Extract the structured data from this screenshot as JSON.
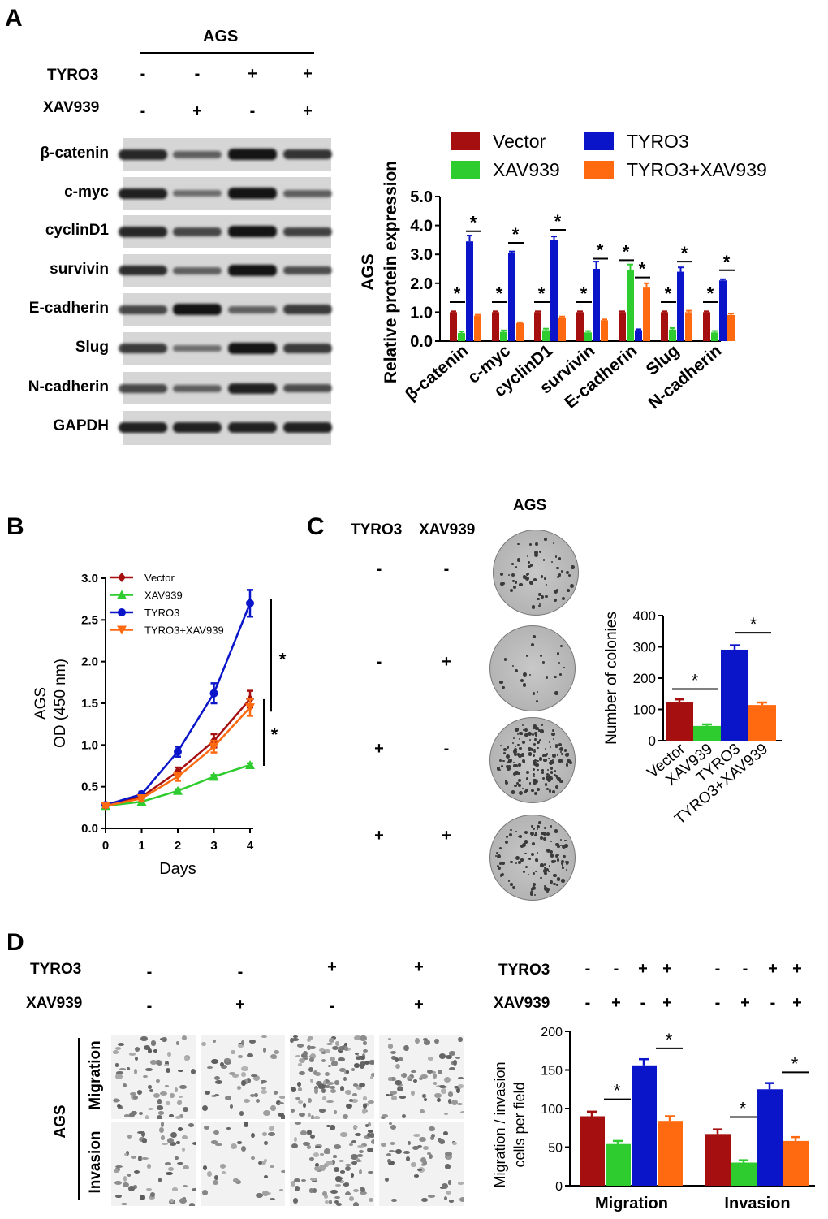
{
  "colors": {
    "vector": "#a50f0f",
    "xav939": "#2ecc2e",
    "tyro3": "#0a14c8",
    "combo": "#ff6a10"
  },
  "panel_a": {
    "letter": "A",
    "cell_line": "AGS",
    "row_labels": [
      "TYRO3",
      "XAV939"
    ],
    "tyro3_signs": [
      "-",
      "-",
      "+",
      "+"
    ],
    "xav939_signs": [
      "-",
      "+",
      "-",
      "+"
    ],
    "proteins": [
      "β-catenin",
      "c-myc",
      "cyclinD1",
      "survivin",
      "E-cadherin",
      "Slug",
      "N-cadherin",
      "GAPDH"
    ]
  },
  "panel_b": {
    "letter": "B"
  },
  "panel_c": {
    "letter": "C",
    "cell_line": "AGS",
    "col_labels": [
      "TYRO3",
      "XAV939"
    ],
    "tyro3_signs": [
      "-",
      "-",
      "+",
      "+"
    ],
    "xav939_signs": [
      "-",
      "+",
      "-",
      "+"
    ]
  },
  "panel_d": {
    "letter": "D",
    "row_labels": [
      "TYRO3",
      "XAV939"
    ],
    "tyro3_signs": [
      "-",
      "-",
      "+",
      "+"
    ],
    "xav939_signs": [
      "-",
      "+",
      "-",
      "+"
    ],
    "cell_line": "AGS",
    "assay_labels": [
      "Migration",
      "Invasion"
    ],
    "chart_signs_tyro3": [
      "-",
      "-",
      "+",
      "+",
      "-",
      "-",
      "+",
      "+"
    ],
    "chart_signs_xav939": [
      "-",
      "+",
      "-",
      "+",
      "-",
      "+",
      "-",
      "+"
    ]
  },
  "chart_data": [
    {
      "id": "western-quant",
      "type": "bar",
      "ylabel": "Relative protein expression",
      "ylabel2": "AGS",
      "categories": [
        "β-catenin",
        "c-myc",
        "cyclinD1",
        "survivin",
        "E-cadherin",
        "Slug",
        "N-cadherin"
      ],
      "series": [
        {
          "name": "Vector",
          "values": [
            1.0,
            1.0,
            1.0,
            1.0,
            1.0,
            1.0,
            1.0
          ],
          "errors": [
            0.03,
            0.03,
            0.03,
            0.03,
            0.03,
            0.03,
            0.03
          ]
        },
        {
          "name": "XAV939",
          "values": [
            0.28,
            0.32,
            0.38,
            0.3,
            2.45,
            0.4,
            0.3
          ],
          "errors": [
            0.05,
            0.05,
            0.05,
            0.05,
            0.2,
            0.05,
            0.05
          ]
        },
        {
          "name": "TYRO3",
          "values": [
            3.45,
            3.05,
            3.5,
            2.5,
            0.38,
            2.4,
            2.1
          ],
          "errors": [
            0.2,
            0.05,
            0.12,
            0.25,
            0.03,
            0.15,
            0.04
          ]
        },
        {
          "name": "TYRO3+XAV939",
          "values": [
            0.88,
            0.62,
            0.82,
            0.72,
            1.85,
            1.0,
            0.9
          ],
          "errors": [
            0.03,
            0.03,
            0.03,
            0.03,
            0.15,
            0.05,
            0.05
          ]
        }
      ],
      "ylim": [
        0,
        5
      ],
      "yticks": [
        "0.0",
        "1.0",
        "2.0",
        "3.0",
        "4.0",
        "5.0"
      ],
      "legend": "top",
      "annotation": "*"
    },
    {
      "id": "growth-curve",
      "type": "line",
      "xlabel": "Days",
      "ylabel": "OD (450 nm)",
      "ylabel2": "AGS",
      "x": [
        0,
        1,
        2,
        3,
        4
      ],
      "xticks": [
        "0",
        "1",
        "2",
        "3",
        "4"
      ],
      "series": [
        {
          "name": "Vector",
          "values": [
            0.28,
            0.38,
            0.68,
            1.05,
            1.55
          ],
          "errors": [
            0.02,
            0.03,
            0.05,
            0.08,
            0.1
          ]
        },
        {
          "name": "XAV939",
          "values": [
            0.27,
            0.32,
            0.45,
            0.62,
            0.76
          ],
          "errors": [
            0.02,
            0.02,
            0.02,
            0.02,
            0.02
          ]
        },
        {
          "name": "TYRO3",
          "values": [
            0.28,
            0.41,
            0.92,
            1.62,
            2.7
          ],
          "errors": [
            0.02,
            0.03,
            0.06,
            0.12,
            0.16
          ]
        },
        {
          "name": "TYRO3+XAV939",
          "values": [
            0.27,
            0.36,
            0.62,
            0.98,
            1.45
          ],
          "errors": [
            0.02,
            0.03,
            0.05,
            0.07,
            0.1
          ]
        }
      ],
      "ylim": [
        0,
        3
      ],
      "yticks": [
        "0.0",
        "0.5",
        "1.0",
        "1.5",
        "2.0",
        "2.5",
        "3.0"
      ],
      "legend": "top-left",
      "annotation": "*"
    },
    {
      "id": "colony-count",
      "type": "bar",
      "ylabel": "Number of colonies",
      "categories": [
        "Vector",
        "XAV939",
        "TYRO3",
        "TYRO3+XAV939"
      ],
      "values": [
        122,
        47,
        291,
        114
      ],
      "errors": [
        10,
        5,
        14,
        8
      ],
      "ylim": [
        0,
        400
      ],
      "yticks": [
        "0",
        "100",
        "200",
        "300",
        "400"
      ],
      "annotation": "*"
    },
    {
      "id": "migration-invasion",
      "type": "bar",
      "ylabel": "Migration / invasion",
      "ylabel2": "cells per field",
      "categories": [
        "Migration",
        "Invasion"
      ],
      "series": [
        {
          "name": "Vector",
          "values": [
            90,
            67
          ],
          "errors": [
            6,
            6
          ]
        },
        {
          "name": "XAV939",
          "values": [
            54,
            30
          ],
          "errors": [
            4,
            3
          ]
        },
        {
          "name": "TYRO3",
          "values": [
            156,
            125
          ],
          "errors": [
            8,
            8
          ]
        },
        {
          "name": "TYRO3+XAV939",
          "values": [
            84,
            58
          ],
          "errors": [
            6,
            5
          ]
        }
      ],
      "ylim": [
        0,
        200
      ],
      "yticks": [
        "0",
        "50",
        "100",
        "150",
        "200"
      ],
      "annotation": "*"
    }
  ]
}
